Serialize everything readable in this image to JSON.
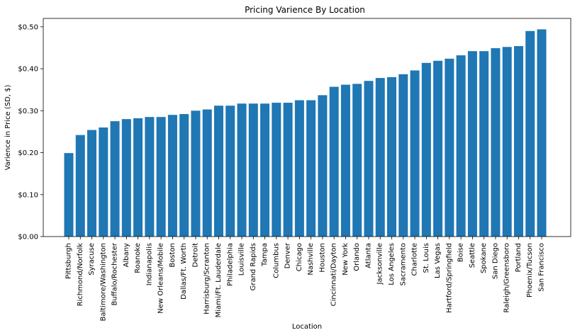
{
  "chart_data": {
    "type": "bar",
    "title": "Pricing Varience By Location",
    "xlabel": "Location",
    "ylabel": "Varience in Price (SD, $)",
    "ylim": [
      0,
      0.52
    ],
    "yticks": [
      0,
      0.1,
      0.2,
      0.3,
      0.4,
      0.5
    ],
    "ytick_labels": [
      "$0.00",
      "$0.10",
      "$0.20",
      "$0.30",
      "$0.40",
      "$0.50"
    ],
    "grid": false,
    "bar_color": "#1f77b4",
    "categories": [
      "Pittsburgh",
      "Richmond/Norfolk",
      "Syracuse",
      "Baltimore/Washington",
      "Buffalo/Rochester",
      "Albany",
      "Roanoke",
      "Indianapolis",
      "New Orleans/Mobile",
      "Boston",
      "Dallas/Ft. Worth",
      "Detroit",
      "Harrisburg/Scranton",
      "Miami/Ft. Lauderdale",
      "Philadelphia",
      "Louisville",
      "Grand Rapids",
      "Tampa",
      "Columbus",
      "Denver",
      "Chicago",
      "Nashville",
      "Houston",
      "Cincinnati/Dayton",
      "New York",
      "Orlando",
      "Atlanta",
      "Jacksonville",
      "Los Angeles",
      "Sacramento",
      "Charlotte",
      "St. Louis",
      "Las Vegas",
      "Hartford/Springfield",
      "Boise",
      "Seattle",
      "Spokane",
      "San Diego",
      "Raleigh/Greensboro",
      "Portland",
      "Phoenix/Tucson",
      "San Francisco"
    ],
    "values": [
      0.199,
      0.242,
      0.254,
      0.26,
      0.275,
      0.28,
      0.282,
      0.285,
      0.285,
      0.29,
      0.292,
      0.3,
      0.303,
      0.312,
      0.312,
      0.317,
      0.317,
      0.317,
      0.319,
      0.319,
      0.325,
      0.325,
      0.337,
      0.357,
      0.362,
      0.364,
      0.371,
      0.378,
      0.38,
      0.387,
      0.396,
      0.414,
      0.419,
      0.424,
      0.432,
      0.442,
      0.442,
      0.449,
      0.452,
      0.454,
      0.49,
      0.494
    ]
  }
}
